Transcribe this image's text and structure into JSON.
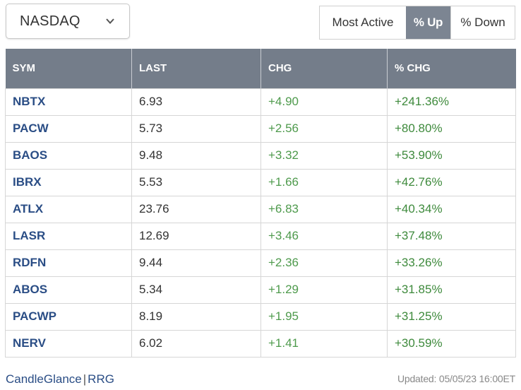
{
  "exchange": {
    "selected": "NASDAQ"
  },
  "tabs": [
    {
      "label": "Most Active",
      "active": false
    },
    {
      "label": "% Up",
      "active": true
    },
    {
      "label": "% Down",
      "active": false
    }
  ],
  "table": {
    "headers": [
      "SYM",
      "LAST",
      "CHG",
      "% CHG"
    ],
    "rows": [
      {
        "sym": "NBTX",
        "last": "6.93",
        "chg": "+4.90",
        "pct": "+241.36%"
      },
      {
        "sym": "PACW",
        "last": "5.73",
        "chg": "+2.56",
        "pct": "+80.80%"
      },
      {
        "sym": "BAOS",
        "last": "9.48",
        "chg": "+3.32",
        "pct": "+53.90%"
      },
      {
        "sym": "IBRX",
        "last": "5.53",
        "chg": "+1.66",
        "pct": "+42.76%"
      },
      {
        "sym": "ATLX",
        "last": "23.76",
        "chg": "+6.83",
        "pct": "+40.34%"
      },
      {
        "sym": "LASR",
        "last": "12.69",
        "chg": "+3.46",
        "pct": "+37.48%"
      },
      {
        "sym": "RDFN",
        "last": "9.44",
        "chg": "+2.36",
        "pct": "+33.26%"
      },
      {
        "sym": "ABOS",
        "last": "5.34",
        "chg": "+1.29",
        "pct": "+31.85%"
      },
      {
        "sym": "PACWP",
        "last": "8.19",
        "chg": "+1.95",
        "pct": "+31.25%"
      },
      {
        "sym": "NERV",
        "last": "6.02",
        "chg": "+1.41",
        "pct": "+30.59%"
      }
    ]
  },
  "footer": {
    "candleglance": "CandleGlance",
    "separator": "|",
    "rrg": "RRG",
    "updated": "Updated: 05/05/23 16:00ET"
  },
  "colors": {
    "header_bg": "#747d8a",
    "active_tab_bg": "#7c8592",
    "symbol": "#2a4d85",
    "positive": "#3e8a3c"
  },
  "icons": {
    "dropdown": "chevron-down-icon"
  }
}
